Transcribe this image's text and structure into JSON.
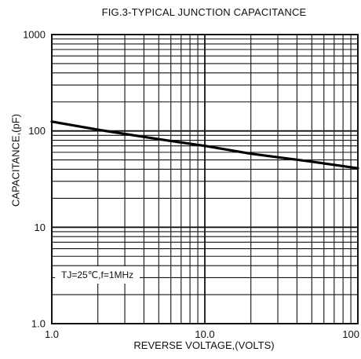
{
  "chart_data": {
    "type": "line",
    "title": "FIG.3-TYPICAL JUNCTION CAPACITANCE",
    "xlabel": "REVERSE VOLTAGE,(VOLTS)",
    "ylabel": "CAPACITANCE,(pF)",
    "x_scale": "log",
    "y_scale": "log",
    "xlim": [
      1,
      100
    ],
    "ylim": [
      1,
      1000
    ],
    "grid": true,
    "x_ticks": [
      {
        "value": 1,
        "label": "1.0"
      },
      {
        "value": 10,
        "label": "10.0"
      },
      {
        "value": 100,
        "label": "100"
      }
    ],
    "y_ticks": [
      {
        "value": 1,
        "label": "1.0"
      },
      {
        "value": 10,
        "label": "10"
      },
      {
        "value": 100,
        "label": "100"
      },
      {
        "value": 1000,
        "label": "1000"
      }
    ],
    "series": [
      {
        "x": [
          1,
          2,
          5,
          10,
          20,
          50,
          100
        ],
        "y": [
          125,
          103,
          82,
          70,
          58,
          48,
          41
        ]
      }
    ],
    "annotation": "TJ=25℃,f=1MHz"
  }
}
